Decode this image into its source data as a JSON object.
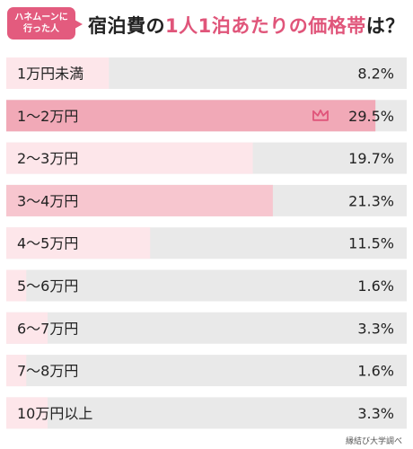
{
  "badge": {
    "line1": "ハネムーンに",
    "line2": "行った人"
  },
  "title": {
    "prefix": "宿泊費の",
    "highlight": "1人1泊あたりの価格帯",
    "suffix": "は？"
  },
  "source": "縁結び大学調べ",
  "colors": {
    "track": "#e9e9e9",
    "bar_top": "#f1a9b7",
    "bar_second": "#f7c6cf",
    "bar_other": "#fde6ea",
    "crown": "#e0557a"
  },
  "chart_data": {
    "type": "bar",
    "orientation": "horizontal",
    "categories": [
      "1万円未満",
      "1〜2万円",
      "2〜3万円",
      "3〜4万円",
      "4〜5万円",
      "5〜6万円",
      "6〜7万円",
      "7〜8万円",
      "10万円以上"
    ],
    "values": [
      8.2,
      29.5,
      19.7,
      21.3,
      11.5,
      1.6,
      3.3,
      1.6,
      3.3
    ],
    "value_labels": [
      "8.2%",
      "29.5%",
      "19.7%",
      "21.3%",
      "11.5%",
      "1.6%",
      "3.3%",
      "1.6%",
      "3.3%"
    ],
    "top_marker_index": 1,
    "unit": "%"
  }
}
